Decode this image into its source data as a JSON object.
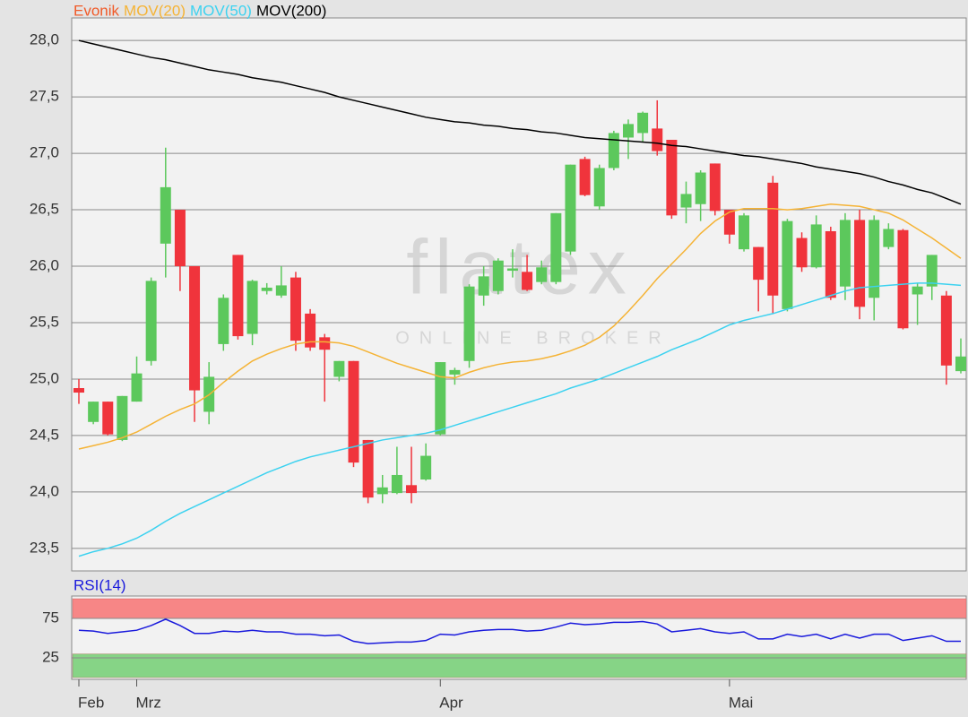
{
  "chart_data": [
    {
      "type": "candlestick",
      "watermark": "flatex",
      "watermark_sub": "ONLINE BROKER",
      "categories": [
        "Feb",
        null,
        null,
        null,
        "Mrz",
        null,
        null,
        null,
        null,
        null,
        null,
        null,
        null,
        null,
        null,
        null,
        null,
        null,
        null,
        null,
        null,
        null,
        null,
        null,
        null,
        "Apr",
        null,
        null,
        null,
        null,
        null,
        null,
        null,
        null,
        null,
        null,
        null,
        null,
        null,
        null,
        null,
        null,
        null,
        null,
        null,
        "Mai",
        null,
        null,
        null,
        null,
        null,
        null,
        null,
        null,
        null,
        null,
        null,
        null,
        null,
        null,
        null,
        null
      ],
      "ylim": [
        23.3,
        28.2
      ],
      "yticks": [
        {
          "value": 23.5,
          "label": "23,5"
        },
        {
          "value": 24.0,
          "label": "24,0"
        },
        {
          "value": 24.5,
          "label": "24,5"
        },
        {
          "value": 25.0,
          "label": "25,0"
        },
        {
          "value": 25.5,
          "label": "25,5"
        },
        {
          "value": 26.0,
          "label": "26,0"
        },
        {
          "value": 26.5,
          "label": "26,5"
        },
        {
          "value": 27.0,
          "label": "27,0"
        },
        {
          "value": 27.5,
          "label": "27,5"
        },
        {
          "value": 28.0,
          "label": "28,0"
        }
      ],
      "grid": true,
      "series": [
        {
          "name": "Evonik",
          "color": "#f05a28",
          "up_color": "#5cc85c",
          "down_color": "#f0343c",
          "open": [
            24.92,
            24.62,
            24.8,
            24.46,
            24.8,
            25.16,
            26.2,
            26.5,
            26.0,
            24.71,
            25.31,
            26.1,
            25.4,
            25.78,
            25.74,
            25.9,
            25.58,
            25.37,
            25.02,
            25.16,
            24.46,
            23.98,
            23.99,
            24.06,
            24.11,
            24.51,
            25.04,
            25.16,
            25.74,
            25.78,
            25.96,
            25.95,
            25.86,
            25.86,
            26.13,
            26.95,
            26.53,
            26.87,
            27.14,
            27.18,
            27.22,
            27.12,
            26.52,
            26.55,
            26.91,
            26.5,
            26.15,
            26.17,
            26.74,
            25.62,
            26.25,
            25.99,
            26.31,
            25.82,
            26.41,
            25.72,
            26.17,
            26.32,
            25.75,
            25.82,
            25.74,
            25.07
          ],
          "high": [
            25.0,
            24.8,
            24.8,
            24.85,
            25.2,
            25.9,
            27.05,
            26.5,
            26.0,
            25.15,
            25.75,
            26.1,
            25.88,
            25.85,
            26.0,
            25.95,
            25.62,
            25.4,
            25.16,
            25.16,
            24.46,
            24.15,
            24.4,
            24.4,
            24.43,
            25.15,
            25.1,
            25.84,
            26.0,
            26.07,
            26.15,
            26.1,
            26.05,
            26.47,
            26.9,
            26.97,
            26.9,
            27.2,
            27.3,
            27.37,
            27.47,
            27.12,
            26.75,
            26.85,
            26.91,
            26.5,
            26.47,
            26.17,
            26.8,
            26.42,
            26.3,
            26.45,
            26.35,
            26.47,
            26.5,
            26.45,
            26.38,
            26.33,
            25.85,
            26.1,
            25.78,
            25.36
          ],
          "low": [
            24.78,
            24.6,
            24.5,
            24.45,
            24.8,
            25.12,
            25.9,
            25.78,
            24.62,
            24.6,
            25.25,
            25.35,
            25.3,
            25.75,
            25.72,
            25.25,
            25.25,
            24.8,
            24.98,
            24.22,
            23.9,
            23.9,
            23.98,
            23.9,
            24.1,
            24.5,
            24.95,
            25.1,
            25.65,
            25.75,
            25.9,
            25.78,
            25.84,
            25.84,
            26.1,
            26.62,
            26.5,
            26.85,
            26.95,
            27.1,
            26.98,
            26.42,
            26.38,
            26.4,
            26.45,
            26.2,
            26.13,
            25.6,
            25.58,
            25.6,
            25.95,
            25.98,
            25.7,
            25.7,
            25.53,
            25.52,
            26.15,
            25.44,
            25.48,
            25.7,
            24.95,
            25.05
          ],
          "close": [
            24.88,
            24.8,
            24.51,
            24.85,
            25.05,
            25.87,
            26.7,
            26.0,
            24.9,
            25.02,
            25.72,
            25.38,
            25.87,
            25.81,
            25.83,
            25.34,
            25.28,
            25.26,
            25.16,
            24.26,
            23.95,
            24.04,
            24.15,
            23.99,
            24.32,
            25.15,
            25.08,
            25.82,
            25.91,
            26.05,
            25.98,
            25.79,
            25.99,
            26.47,
            26.9,
            26.63,
            26.87,
            27.18,
            27.26,
            27.36,
            27.02,
            26.45,
            26.64,
            26.83,
            26.49,
            26.28,
            26.45,
            25.88,
            25.74,
            26.4,
            25.99,
            26.37,
            25.72,
            26.41,
            25.64,
            26.41,
            26.33,
            25.45,
            25.82,
            26.1,
            25.12,
            25.2
          ]
        },
        {
          "name": "MOV(20)",
          "color": "#f5b335",
          "values": [
            24.38,
            24.41,
            24.44,
            24.48,
            24.53,
            24.6,
            24.67,
            24.73,
            24.78,
            24.86,
            24.97,
            25.07,
            25.16,
            25.22,
            25.27,
            25.31,
            25.33,
            25.33,
            25.32,
            25.29,
            25.24,
            25.19,
            25.14,
            25.1,
            25.06,
            25.02,
            25.01,
            25.06,
            25.1,
            25.13,
            25.15,
            25.16,
            25.18,
            25.21,
            25.25,
            25.3,
            25.37,
            25.47,
            25.6,
            25.74,
            25.89,
            26.02,
            26.15,
            26.29,
            26.4,
            26.48,
            26.51,
            26.51,
            26.51,
            26.5,
            26.51,
            26.53,
            26.55,
            26.54,
            26.53,
            26.5,
            26.47,
            26.41,
            26.33,
            26.25,
            26.16,
            26.07
          ]
        },
        {
          "name": "MOV(50)",
          "color": "#3cd2f0",
          "values": [
            23.43,
            23.47,
            23.5,
            23.54,
            23.59,
            23.66,
            23.74,
            23.81,
            23.87,
            23.93,
            23.99,
            24.05,
            24.11,
            24.17,
            24.22,
            24.27,
            24.31,
            24.34,
            24.37,
            24.4,
            24.43,
            24.46,
            24.48,
            24.5,
            24.52,
            24.55,
            24.59,
            24.63,
            24.67,
            24.71,
            24.75,
            24.79,
            24.83,
            24.87,
            24.92,
            24.96,
            25.0,
            25.05,
            25.1,
            25.15,
            25.2,
            25.26,
            25.31,
            25.36,
            25.42,
            25.48,
            25.52,
            25.55,
            25.58,
            25.62,
            25.66,
            25.7,
            25.74,
            25.78,
            25.81,
            25.82,
            25.83,
            25.84,
            25.85,
            25.85,
            25.84,
            25.83
          ]
        },
        {
          "name": "MOV(200)",
          "color": "#000000",
          "values": [
            28.0,
            27.97,
            27.94,
            27.91,
            27.88,
            27.85,
            27.83,
            27.8,
            27.77,
            27.74,
            27.72,
            27.7,
            27.67,
            27.65,
            27.63,
            27.6,
            27.57,
            27.54,
            27.5,
            27.47,
            27.44,
            27.41,
            27.38,
            27.35,
            27.32,
            27.3,
            27.28,
            27.27,
            27.25,
            27.24,
            27.22,
            27.21,
            27.19,
            27.18,
            27.16,
            27.14,
            27.13,
            27.12,
            27.11,
            27.1,
            27.09,
            27.07,
            27.06,
            27.04,
            27.02,
            27.0,
            26.98,
            26.97,
            26.95,
            26.93,
            26.91,
            26.88,
            26.86,
            26.84,
            26.82,
            26.79,
            26.75,
            26.72,
            26.68,
            26.65,
            26.6,
            26.55
          ]
        }
      ]
    },
    {
      "type": "line",
      "ylim": [
        0,
        100
      ],
      "yticks": [
        25,
        75
      ],
      "bands": [
        {
          "from": 75,
          "to": 100,
          "color": "#f78686"
        },
        {
          "from": 0,
          "to": 30,
          "color": "#86d486"
        }
      ],
      "series": [
        {
          "name": "RSI(14)",
          "color": "#1a1adc",
          "values": [
            60,
            59,
            56,
            58,
            60,
            66,
            74,
            66,
            56,
            56,
            59,
            58,
            60,
            58,
            58,
            55,
            55,
            53,
            54,
            46,
            43,
            44,
            45,
            45,
            47,
            55,
            54,
            58,
            60,
            61,
            61,
            59,
            60,
            64,
            69,
            67,
            68,
            70,
            70,
            71,
            68,
            58,
            60,
            62,
            58,
            56,
            58,
            49,
            49,
            55,
            52,
            55,
            49,
            55,
            50,
            55,
            55,
            47,
            50,
            53,
            46,
            46
          ]
        }
      ]
    }
  ]
}
